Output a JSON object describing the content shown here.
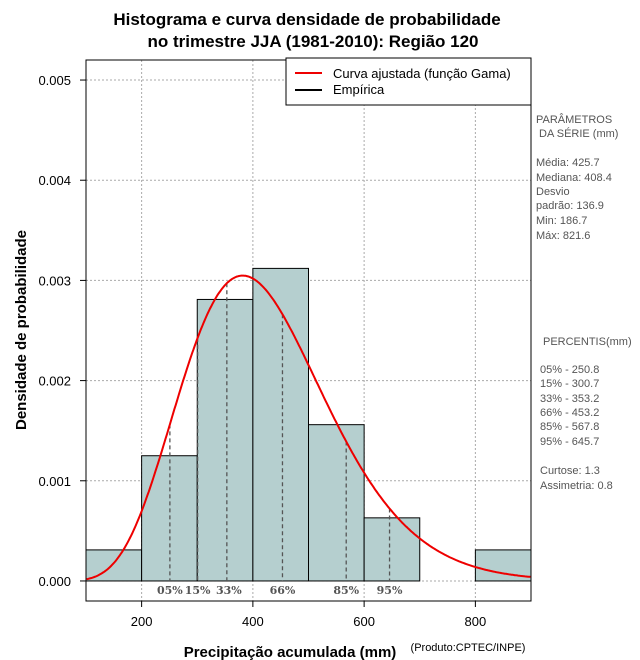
{
  "chart_data": {
    "type": "bar",
    "title": [
      "Histograma e curva densidade de probabilidade",
      "no trimestre JJA (1981-2010): Região 120"
    ],
    "xlabel": "Precipitação acumulada (mm)",
    "ylabel": "Densidade de probabilidade",
    "credit": "(Produto:CPTEC/INPE)",
    "xlim": [
      100,
      900
    ],
    "ylim": [
      -0.0002,
      0.0052
    ],
    "xticks": [
      200,
      400,
      600,
      800
    ],
    "yticks": [
      0.0,
      0.001,
      0.002,
      0.003,
      0.004,
      0.005
    ],
    "ytick_labels": [
      "0.000",
      "0.001",
      "0.002",
      "0.003",
      "0.004",
      "0.005"
    ],
    "grid": true,
    "bin_edges": [
      100,
      200,
      300,
      400,
      500,
      600,
      700,
      800,
      900
    ],
    "densities": [
      0.00031,
      0.00125,
      0.00281,
      0.00312,
      0.00156,
      0.00063,
      0.0,
      0.00031
    ],
    "bar_color": "#b5cfcf",
    "curve": {
      "name": "Curva ajustada (função Gama)",
      "color": "#ee0000",
      "distribution": "gamma",
      "mean": 425.7,
      "sd": 136.9
    },
    "legend": [
      {
        "label": "Curva ajustada (função Gama)",
        "color": "#ee0000"
      },
      {
        "label": "Empírica",
        "color": "#000000"
      }
    ],
    "legend_position": "top-right",
    "percentile_marks": [
      {
        "label": "05%",
        "value": 250.8
      },
      {
        "label": "15%",
        "value": 300.7
      },
      {
        "label": "33%",
        "value": 353.2
      },
      {
        "label": "66%",
        "value": 453.2
      },
      {
        "label": "85%",
        "value": 567.8
      },
      {
        "label": "95%",
        "value": 645.7
      }
    ]
  },
  "stats_panel": {
    "params_heading_1": "PARÂMETROS",
    "params_heading_2": "DA SÉRIE (mm)",
    "media": "Média:  425.7",
    "mediana": "Mediana:  408.4",
    "desvio_1": "Desvio",
    "desvio_2": "padrão:  136.9",
    "min": "Min:  186.7",
    "max": "Máx:  821.6",
    "percentis_heading": "PERCENTIS(mm)",
    "percentis": [
      "05% -  250.8",
      "15% -  300.7",
      "33% -  353.2",
      "66% -  453.2",
      "85% -  567.8",
      "95% -  645.7"
    ],
    "curtose": "Curtose:  1.3",
    "assimetria": "Assimetria:  0.8"
  }
}
